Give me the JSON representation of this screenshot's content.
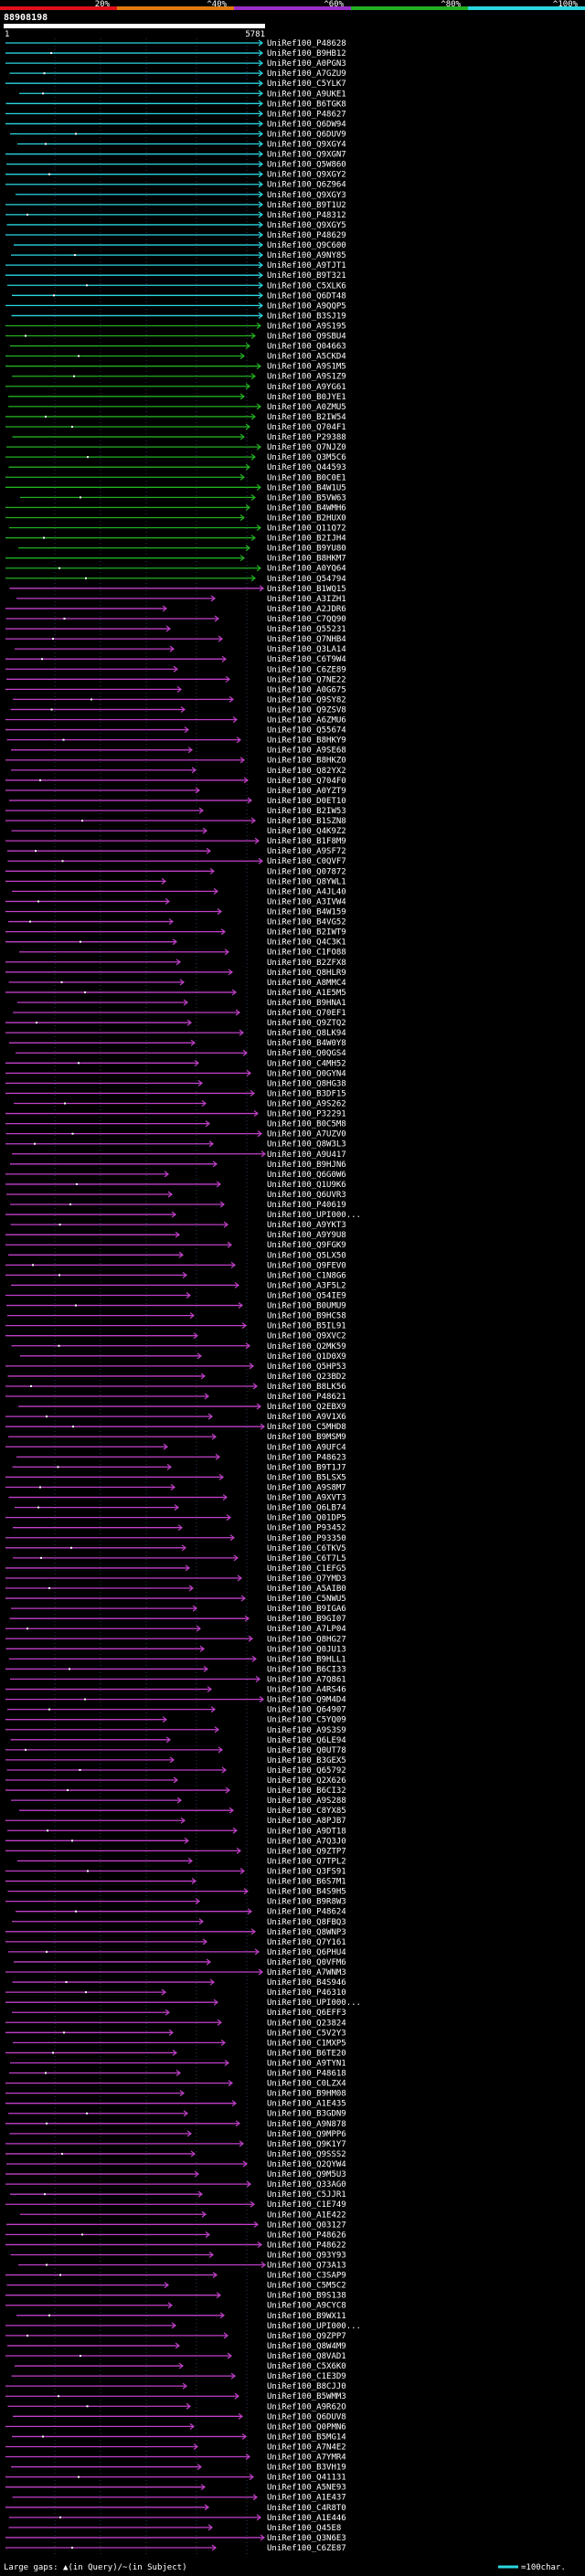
{
  "header": {
    "scale_labels": [
      "20%",
      "^40%",
      "^60%",
      "^80%",
      "^100%"
    ],
    "scale_colors": [
      "#e0101a",
      "#e07a10",
      "#9a2ec8",
      "#22b022",
      "#2ad6e0"
    ],
    "query_id": "88908198",
    "range_start": "1",
    "range_end": "5781"
  },
  "footer": {
    "gap_label": "Large gaps: ▲(in Query)/~(in Subject)",
    "scale_text": "=100char.",
    "scale_color": "#2ad6e0"
  },
  "chart_data": {
    "type": "alignment-overview",
    "title": "88908198",
    "x_range": [
      1,
      5781
    ],
    "color_by_identity": {
      "cyan": "~100%",
      "green": "~80%",
      "purple": "~60%"
    },
    "subjects": [
      "UniRef100_P48628",
      "UniRef100_B9HB12",
      "UniRef100_A0PGN3",
      "UniRef100_A7GZU9",
      "UniRef100_C5YLK7",
      "UniRef100_A9UKE1",
      "UniRef100_B6TGK8",
      "UniRef100_P48627",
      "UniRef100_Q6DW94",
      "UniRef100_Q6DUV9",
      "UniRef100_Q9XGY4",
      "UniRef100_Q9XGN7",
      "UniRef100_Q5W860",
      "UniRef100_Q9XGY2",
      "UniRef100_Q6Z964",
      "UniRef100_Q9XGY3",
      "UniRef100_B9T1U2",
      "UniRef100_P48312",
      "UniRef100_Q9XGY5",
      "UniRef100_P48629",
      "UniRef100_Q9C600",
      "UniRef100_A9NY85",
      "UniRef100_A9TJT1",
      "UniRef100_B9T321",
      "UniRef100_C5XLK6",
      "UniRef100_Q6DT48",
      "UniRef100_A9QQP5",
      "UniRef100_B3SJ19",
      "UniRef100_A9S195",
      "UniRef100_Q9SBU4",
      "UniRef100_Q04663",
      "UniRef100_A5CKD4",
      "UniRef100_A9S1M5",
      "UniRef100_A9S1Z9",
      "UniRef100_A9YG61",
      "UniRef100_B0JYE1",
      "UniRef100_A0ZMU5",
      "UniRef100_B2IW54",
      "UniRef100_Q704F1",
      "UniRef100_P29388",
      "UniRef100_Q7NJZ0",
      "UniRef100_Q3M5C6",
      "UniRef100_Q44593",
      "UniRef100_B0C0E1",
      "UniRef100_B4W1U5",
      "UniRef100_B5VW63",
      "UniRef100_B4WMH6",
      "UniRef100_B2HUX0",
      "UniRef100_Q11Q72",
      "UniRef100_B2IJH4",
      "UniRef100_B9YU80",
      "UniRef100_B8HKM7",
      "UniRef100_A0YQ64",
      "UniRef100_Q54794",
      "UniRef100_B1WQ15",
      "UniRef100_A3IZH1",
      "UniRef100_A2JDR6",
      "UniRef100_C7QQ90",
      "UniRef100_Q55231",
      "UniRef100_Q7NHB4",
      "UniRef100_Q3LA14",
      "UniRef100_C6T9W4",
      "UniRef100_C6ZE89",
      "UniRef100_Q7NE22",
      "UniRef100_A0G675",
      "UniRef100_Q9SY82",
      "UniRef100_Q9ZSV8",
      "UniRef100_A6ZMU6",
      "UniRef100_Q55674",
      "UniRef100_B8HKY9",
      "UniRef100_A9SE68",
      "UniRef100_B8HKZ0",
      "UniRef100_Q82YX2",
      "UniRef100_Q704F0",
      "UniRef100_A0YZT9",
      "UniRef100_D0ET10",
      "UniRef100_B2IW53",
      "UniRef100_B1SZN8",
      "UniRef100_Q4K9Z2",
      "UniRef100_B1F8M9",
      "UniRef100_A9SF72",
      "UniRef100_C0QVF7",
      "UniRef100_Q07872",
      "UniRef100_Q8YWL1",
      "UniRef100_A4JL40",
      "UniRef100_A3IVW4",
      "UniRef100_B4W159",
      "UniRef100_B4VG52",
      "UniRef100_B2IWT9",
      "UniRef100_Q4C3K1",
      "UniRef100_C1FO88",
      "UniRef100_B2ZFX8",
      "UniRef100_Q8HLR9",
      "UniRef100_A8MMC4",
      "UniRef100_A1E5M5",
      "UniRef100_B9HNA1",
      "UniRef100_Q70EF1",
      "UniRef100_Q9ZTQ2",
      "UniRef100_Q8LK94",
      "UniRef100_B4W0Y8",
      "UniRef100_Q0QGS4",
      "UniRef100_C4MH52",
      "UniRef100_Q0GYN4",
      "UniRef100_Q8HG38",
      "UniRef100_B3DF15",
      "UniRef100_A9S262",
      "UniRef100_P32291",
      "UniRef100_B0C5M8",
      "UniRef100_A7UZV0",
      "UniRef100_Q8W3L3",
      "UniRef100_A9U417",
      "UniRef100_B9HJN6",
      "UniRef100_Q6G0W6",
      "UniRef100_Q1U9K6",
      "UniRef100_Q6UVR3",
      "UniRef100_P40619",
      "UniRef100_UPI000...",
      "UniRef100_A9YKT3",
      "UniRef100_A9Y9U8",
      "UniRef100_Q9FGK9",
      "UniRef100_Q5LX50",
      "UniRef100_Q9FEV0",
      "UniRef100_C1N8G6",
      "UniRef100_A3F5L2",
      "UniRef100_Q54IE9",
      "UniRef100_B0UMU9",
      "UniRef100_B9HC58",
      "UniRef100_B5IL91",
      "UniRef100_Q9XVC2",
      "UniRef100_Q2MK59",
      "UniRef100_Q1D0X9",
      "UniRef100_Q5HP53",
      "UniRef100_Q23BD2",
      "UniRef100_B8LK56",
      "UniRef100_P48621",
      "UniRef100_Q2EBX9",
      "UniRef100_A9V1X6",
      "UniRef100_C5MHD8",
      "UniRef100_B9MSM9",
      "UniRef100_A9UFC4",
      "UniRef100_P48623",
      "UniRef100_B9T1J7",
      "UniRef100_B5LSX5",
      "UniRef100_A9S8M7",
      "UniRef100_A9XVT3",
      "UniRef100_Q6LB74",
      "UniRef100_Q01DP5",
      "UniRef100_P93452",
      "UniRef100_P93350",
      "UniRef100_C6TKV5",
      "UniRef100_C6T7L5",
      "UniRef100_C1EFG5",
      "UniRef100_Q7YMD3",
      "UniRef100_A5AIB0",
      "UniRef100_C5NWU5",
      "UniRef100_B9IGA6",
      "UniRef100_B9GI07",
      "UniRef100_A7LP04",
      "UniRef100_Q8HG27",
      "UniRef100_Q0JU13",
      "UniRef100_B9HLL1",
      "UniRef100_B6CI33",
      "UniRef100_A7Q861",
      "UniRef100_A4RS46",
      "UniRef100_Q9M4D4",
      "UniRef100_Q64907",
      "UniRef100_C5YQ09",
      "UniRef100_A9S3S9",
      "UniRef100_Q6LE94",
      "UniRef100_Q0UT78",
      "UniRef100_B3GEX5",
      "UniRef100_Q65792",
      "UniRef100_Q2X626",
      "UniRef100_B6CI32",
      "UniRef100_A9S288",
      "UniRef100_C8YX85",
      "UniRef100_A8PJB7",
      "UniRef100_A9DT18",
      "UniRef100_A7Q3J0",
      "UniRef100_Q9ZTP7",
      "UniRef100_Q7TPL2",
      "UniRef100_Q3FS91",
      "UniRef100_B6S7M1",
      "UniRef100_B4S9H5",
      "UniRef100_B9R8W3",
      "UniRef100_P48624",
      "UniRef100_Q8FBQ3",
      "UniRef100_Q8WNP3",
      "UniRef100_Q7Y161",
      "UniRef100_Q6PHU4",
      "UniRef100_Q0VFM6",
      "UniRef100_A7WNM3",
      "UniRef100_B4S946",
      "UniRef100_P46310",
      "UniRef100_UPI000...",
      "UniRef100_Q6EFF3",
      "UniRef100_Q23824",
      "UniRef100_C5V2Y3",
      "UniRef100_C1MXP5",
      "UniRef100_B6TE20",
      "UniRef100_A9TYN1",
      "UniRef100_P48618",
      "UniRef100_C0LZX4",
      "UniRef100_B9HM08",
      "UniRef100_A1E435",
      "UniRef100_B3GDN9",
      "UniRef100_A9N878",
      "UniRef100_Q9MPP6",
      "UniRef100_Q9K1Y7",
      "UniRef100_Q9SSS2",
      "UniRef100_Q2QYW4",
      "UniRef100_Q9M5U3",
      "UniRef100_Q33AG0",
      "UniRef100_C5JJR1",
      "UniRef100_C1E749",
      "UniRef100_A1E422",
      "UniRef100_Q03127",
      "UniRef100_P48626",
      "UniRef100_P48622",
      "UniRef100_Q93Y93",
      "UniRef100_Q73A13",
      "UniRef100_C3SAP9",
      "UniRef100_C5M5C2",
      "UniRef100_B9S138",
      "UniRef100_A9CYC8",
      "UniRef100_B9WX11",
      "UniRef100_UPI000...",
      "UniRef100_Q9ZPP7",
      "UniRef100_Q8W4M9",
      "UniRef100_Q8VAD1",
      "UniRef100_C5X6K0",
      "UniRef100_C1E3D9",
      "UniRef100_B8CJJ0",
      "UniRef100_B5WMM3",
      "UniRef100_A9R62O",
      "UniRef100_Q6DUV8",
      "UniRef100_Q0PMN6",
      "UniRef100_B5MG14",
      "UniRef100_A7N4E2",
      "UniRef100_A7YMR4",
      "UniRef100_B3VH19",
      "UniRef100_Q41131",
      "UniRef100_A5NE93",
      "UniRef100_A1E437",
      "UniRef100_C4R8T0",
      "UniRef100_A1E446",
      "UniRef100_Q45E8",
      "UniRef100_Q3N6E3",
      "UniRef100_C6ZE87"
    ]
  }
}
